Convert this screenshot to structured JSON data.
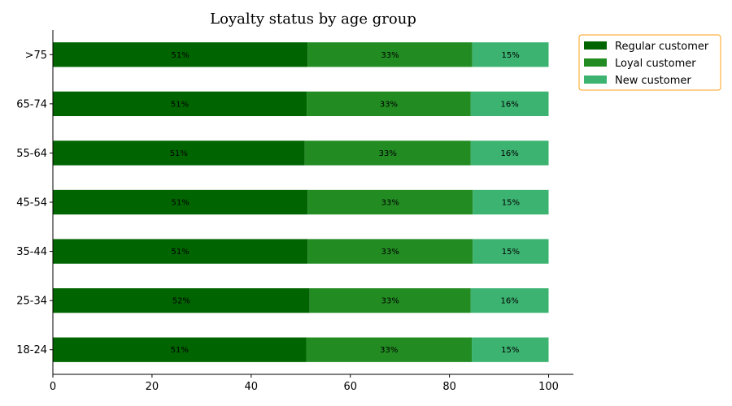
{
  "chart_data": {
    "type": "bar",
    "orientation": "horizontal",
    "stacked": true,
    "title": "Loyalty status by age group",
    "xlabel": "",
    "ylabel": "",
    "xlim": [
      0,
      105
    ],
    "x_ticks": [
      0,
      20,
      40,
      60,
      80,
      100
    ],
    "grid": false,
    "legend_placement": "outside-top-right",
    "categories": [
      "18-24",
      "25-34",
      "35-44",
      "45-54",
      "55-64",
      "65-74",
      ">75"
    ],
    "series": [
      {
        "name": "Regular customer",
        "color": "#006400",
        "values": [
          51.1,
          51.8,
          51.4,
          51.4,
          50.8,
          51.2,
          51.4
        ],
        "labels": [
          "51%",
          "52%",
          "51%",
          "51%",
          "51%",
          "51%",
          "51%"
        ]
      },
      {
        "name": "Loyal customer",
        "color": "#228B22",
        "values": [
          33.4,
          32.5,
          33.3,
          33.3,
          33.5,
          33.1,
          33.2
        ],
        "labels": [
          "33%",
          "33%",
          "33%",
          "33%",
          "33%",
          "33%",
          "33%"
        ]
      },
      {
        "name": "New customer",
        "color": "#3CB371",
        "values": [
          15.5,
          15.7,
          15.3,
          15.3,
          15.7,
          15.7,
          15.4
        ],
        "labels": [
          "15%",
          "16%",
          "15%",
          "15%",
          "16%",
          "16%",
          "15%"
        ]
      }
    ]
  }
}
